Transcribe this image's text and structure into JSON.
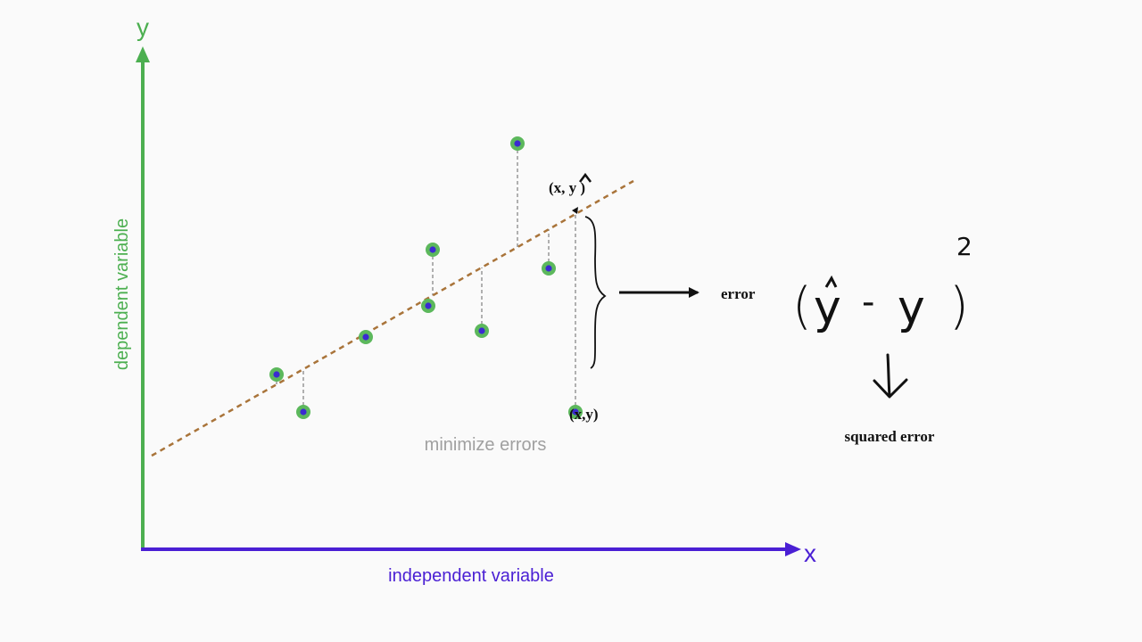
{
  "axes": {
    "x_letter": "x",
    "y_letter": "y",
    "x_label": "independent variable",
    "y_label": "dependent variable"
  },
  "annotations": {
    "predicted_point_label": "(x, y )",
    "hat_mark": "^",
    "actual_point_label": "(x,y)",
    "error_label": "error",
    "squared_error_label": "squared error",
    "minimize_label": "minimize errors",
    "formula": {
      "open_paren": "(",
      "y_hat": "y",
      "hat": "^",
      "minus": "-",
      "y": "y",
      "close_paren": ")",
      "exponent": "2"
    }
  },
  "colors": {
    "background": "#fafafa",
    "y_axis": "#4caf50",
    "x_axis": "#4a1fd4",
    "regression_line": "#a9743a",
    "point_outer": "#5cb85c",
    "point_inner": "#3b2ad1",
    "residual_line": "#888888",
    "minimize_text": "#a0a0a0",
    "ink": "#111111"
  },
  "chart_data": {
    "type": "scatter",
    "points": [
      {
        "x": 1.5,
        "y": 2.8
      },
      {
        "x": 1.8,
        "y": 2.2
      },
      {
        "x": 2.5,
        "y": 3.4
      },
      {
        "x": 3.2,
        "y": 3.9
      },
      {
        "x": 3.25,
        "y": 4.8
      },
      {
        "x": 3.8,
        "y": 3.5
      },
      {
        "x": 4.2,
        "y": 6.5
      },
      {
        "x": 4.55,
        "y": 4.5
      },
      {
        "x": 4.85,
        "y": 2.2
      }
    ],
    "regression_line": {
      "x": [
        0.1,
        5.5
      ],
      "y": [
        1.5,
        5.9
      ]
    },
    "highlighted_point": {
      "x": 4.85,
      "y": 2.2,
      "predicted_y": 5.5
    },
    "xlim": [
      0,
      7.5
    ],
    "ylim": [
      0,
      7.8
    ],
    "residuals_shown": true
  }
}
